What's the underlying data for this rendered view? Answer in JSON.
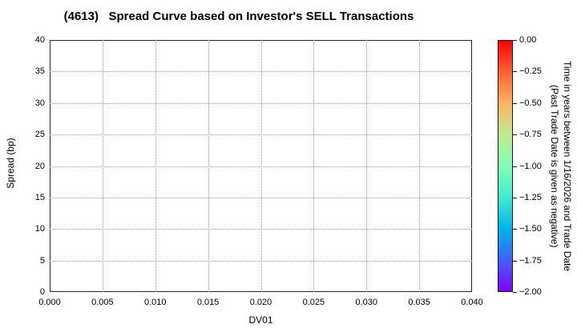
{
  "title": "(4613)   Spread Curve based on Investor's SELL Transactions",
  "axes": {
    "x": {
      "label": "DV01",
      "tick_labels": [
        "0.000",
        "0.005",
        "0.010",
        "0.015",
        "0.020",
        "0.025",
        "0.030",
        "0.035",
        "0.040"
      ]
    },
    "y": {
      "label": "Spread (bp)",
      "tick_labels": [
        "0",
        "5",
        "10",
        "15",
        "20",
        "25",
        "30",
        "35",
        "40"
      ]
    }
  },
  "colorbar": {
    "tick_labels": [
      "0.00",
      "−0.25",
      "−0.50",
      "−0.75",
      "−1.00",
      "−1.25",
      "−1.50",
      "−1.75",
      "−2.00"
    ],
    "label_line1": "Time in years between 1/16/2026 and Trade Date",
    "label_line2": "(Past Trade Date is given as negative)",
    "colormap": "rainbow",
    "gradient_colors": [
      "#ff0000",
      "#ff6232",
      "#ffb462",
      "#bfec8e",
      "#80ffb4",
      "#40ecd4",
      "#00b4ec",
      "#4062fa",
      "#8000ff"
    ]
  },
  "colors": {
    "grid": "#999999",
    "frame": "#262626",
    "text": "#000000",
    "background": "#ffffff"
  },
  "chart_data": {
    "type": "scatter",
    "title": "(4613)   Spread Curve based on Investor's SELL Transactions",
    "xlabel": "DV01",
    "ylabel": "Spread (bp)",
    "xlim": [
      0.0,
      0.04
    ],
    "ylim": [
      0,
      40
    ],
    "x_ticks": [
      0.0,
      0.005,
      0.01,
      0.015,
      0.02,
      0.025,
      0.03,
      0.035,
      0.04
    ],
    "y_ticks": [
      0,
      5,
      10,
      15,
      20,
      25,
      30,
      35,
      40
    ],
    "grid": true,
    "grid_style": "dotted",
    "series": [],
    "points": [],
    "colorbar": {
      "orientation": "vertical",
      "position": "right",
      "colormap": "rainbow",
      "range": [
        -2.0,
        0.0
      ],
      "ticks": [
        0.0,
        -0.25,
        -0.5,
        -0.75,
        -1.0,
        -1.25,
        -1.5,
        -1.75,
        -2.0
      ],
      "label": "Time in years between 1/16/2026 and Trade Date (Past Trade Date is given as negative)"
    }
  }
}
